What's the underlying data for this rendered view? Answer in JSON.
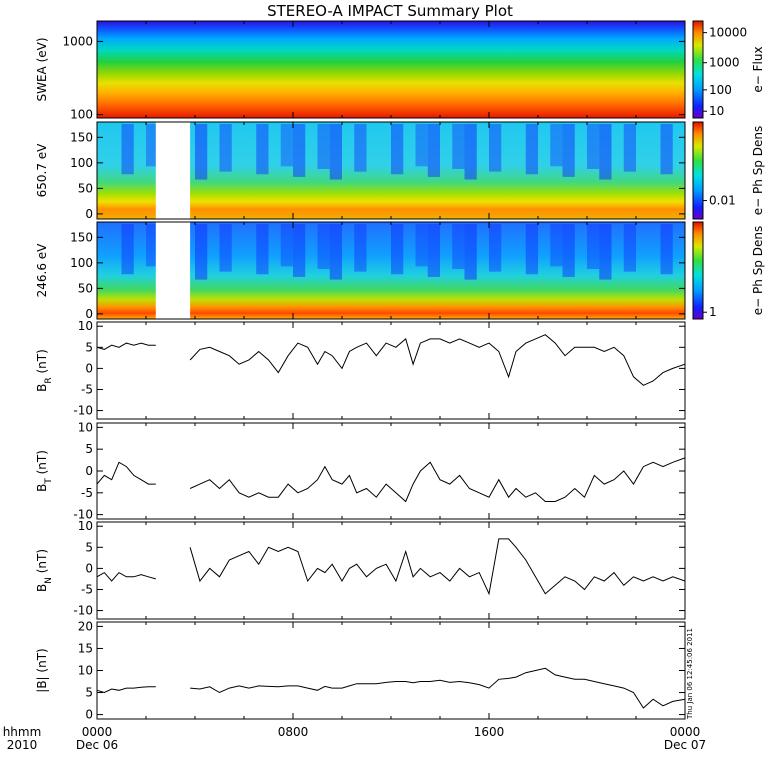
{
  "title": "STEREO-A IMPACT Summary Plot",
  "stamp": "Thu Jan 06 12:45:06 2011",
  "time_axis": {
    "row1_labels": [
      "hhmm",
      "0000",
      "0800",
      "1600",
      "0000"
    ],
    "row2_labels": [
      "2010",
      "Dec 06",
      "",
      "",
      "Dec 07"
    ]
  },
  "colors": {
    "trace": "#000000",
    "frame": "#000000"
  },
  "chart_data": [
    {
      "type": "heatmap",
      "ylabel": "SWEA (eV)",
      "ylog": true,
      "ylim": [
        90,
        1900
      ],
      "yticks": [
        "1000",
        "100"
      ],
      "colorbar": {
        "label": "e− Flux",
        "ticks": [
          "10000",
          "1000",
          "100",
          "10"
        ]
      },
      "x_hours": [
        0,
        24
      ],
      "data_gaps_hours": []
    },
    {
      "type": "heatmap",
      "ylabel": "650.7 eV",
      "ylim": [
        -10,
        180
      ],
      "yticks": [
        "150",
        "100",
        "50",
        "0"
      ],
      "colorbar": {
        "label": "e− Ph Sp Dens",
        "ticks": [
          "0.01"
        ]
      },
      "x_hours": [
        0,
        24
      ],
      "data_gaps_hours": [
        [
          2.4,
          3.8
        ]
      ]
    },
    {
      "type": "heatmap",
      "ylabel": "246.6 eV",
      "ylim": [
        -10,
        180
      ],
      "yticks": [
        "150",
        "100",
        "50",
        "0"
      ],
      "colorbar": {
        "label": "e− Ph Sp Dens",
        "ticks": [
          "1"
        ]
      },
      "x_hours": [
        0,
        24
      ],
      "data_gaps_hours": [
        [
          2.4,
          3.8
        ]
      ]
    },
    {
      "type": "line",
      "ylabel_main": "B",
      "ylabel_sub": "R",
      "ylabel_unit": " (nT)",
      "ylim": [
        -12,
        11
      ],
      "yticks": [
        "10",
        "5",
        "0",
        "-5",
        "-10"
      ],
      "series": [
        {
          "x": [
            0,
            0.3,
            0.6,
            0.9,
            1.2,
            1.5,
            1.8,
            2.1,
            2.4,
            3.8,
            4.2,
            4.6,
            5.0,
            5.4,
            5.8,
            6.2,
            6.6,
            7.0,
            7.4,
            7.8,
            8.2,
            8.6,
            9.0,
            9.3,
            9.6,
            10.0,
            10.3,
            10.6,
            11.0,
            11.4,
            11.8,
            12.2,
            12.6,
            12.9,
            13.2,
            13.6,
            14.0,
            14.4,
            14.8,
            15.2,
            15.6,
            16.0,
            16.4,
            16.8,
            17.1,
            17.5,
            17.9,
            18.3,
            18.7,
            19.1,
            19.5,
            19.9,
            20.3,
            20.7,
            21.1,
            21.5,
            21.9,
            22.3,
            22.7,
            23.1,
            23.5,
            24.0
          ],
          "y": [
            5,
            4.5,
            5.5,
            5,
            6,
            5.5,
            6,
            5.5,
            5.5,
            2,
            4.5,
            5,
            4,
            3,
            1,
            2,
            4,
            2,
            -1,
            3,
            6,
            5,
            1,
            4,
            3,
            0,
            4,
            5,
            6,
            3,
            6,
            5,
            7,
            1,
            6,
            7,
            7,
            6,
            7,
            6,
            5,
            6,
            4,
            -2,
            4,
            6,
            7,
            8,
            6,
            3,
            5,
            5,
            5,
            4,
            5,
            3,
            -2,
            -4,
            -3,
            -1,
            0,
            1
          ]
        }
      ]
    },
    {
      "type": "line",
      "ylabel_main": "B",
      "ylabel_sub": "T",
      "ylabel_unit": " (nT)",
      "ylim": [
        -11,
        11
      ],
      "yticks": [
        "10",
        "5",
        "0",
        "-5",
        "-10"
      ],
      "series": [
        {
          "x": [
            0,
            0.3,
            0.6,
            0.9,
            1.2,
            1.5,
            1.8,
            2.1,
            2.4,
            3.8,
            4.2,
            4.6,
            5.0,
            5.4,
            5.8,
            6.2,
            6.6,
            7.0,
            7.4,
            7.8,
            8.2,
            8.6,
            9.0,
            9.3,
            9.6,
            10.0,
            10.3,
            10.6,
            11.0,
            11.4,
            11.8,
            12.2,
            12.6,
            12.9,
            13.2,
            13.6,
            14.0,
            14.4,
            14.8,
            15.2,
            15.6,
            16.0,
            16.4,
            16.8,
            17.1,
            17.5,
            17.9,
            18.3,
            18.7,
            19.1,
            19.5,
            19.9,
            20.3,
            20.7,
            21.1,
            21.5,
            21.9,
            22.3,
            22.7,
            23.1,
            23.5,
            24.0
          ],
          "y": [
            -3,
            -1,
            -2,
            2,
            1,
            -1,
            -2,
            -3,
            -3,
            -4,
            -3,
            -2,
            -4,
            -2,
            -5,
            -6,
            -5,
            -6,
            -6,
            -3,
            -5,
            -4,
            -2,
            1,
            -2,
            -3,
            -1,
            -5,
            -4,
            -6,
            -3,
            -5,
            -7,
            -3,
            0,
            2,
            -2,
            -3,
            -1,
            -4,
            -5,
            -6,
            -2,
            -6,
            -4,
            -6,
            -5,
            -7,
            -7,
            -6,
            -4,
            -6,
            -1,
            -3,
            -2,
            0,
            -3,
            1,
            2,
            1,
            2,
            3
          ]
        }
      ]
    },
    {
      "type": "line",
      "ylabel_main": "B",
      "ylabel_sub": "N",
      "ylabel_unit": " (nT)",
      "ylim": [
        -12,
        11
      ],
      "yticks": [
        "10",
        "5",
        "0",
        "-5",
        "-10"
      ],
      "series": [
        {
          "x": [
            0,
            0.3,
            0.6,
            0.9,
            1.2,
            1.5,
            1.8,
            2.1,
            2.4,
            3.8,
            4.2,
            4.6,
            5.0,
            5.4,
            5.8,
            6.2,
            6.6,
            7.0,
            7.4,
            7.8,
            8.2,
            8.6,
            9.0,
            9.3,
            9.6,
            10.0,
            10.3,
            10.6,
            11.0,
            11.4,
            11.8,
            12.2,
            12.6,
            12.9,
            13.2,
            13.6,
            14.0,
            14.4,
            14.8,
            15.2,
            15.6,
            16.0,
            16.4,
            16.8,
            17.1,
            17.5,
            17.9,
            18.3,
            18.7,
            19.1,
            19.5,
            19.9,
            20.3,
            20.7,
            21.1,
            21.5,
            21.9,
            22.3,
            22.7,
            23.1,
            23.5,
            24.0
          ],
          "y": [
            -2,
            -1,
            -3,
            -1,
            -2,
            -2,
            -1.5,
            -2,
            -2.5,
            5,
            -3,
            0,
            -2,
            2,
            3,
            4,
            1,
            5,
            4,
            5,
            4,
            -3,
            0,
            -1,
            1,
            -3,
            0,
            1,
            -2,
            0,
            1,
            -3,
            4,
            -2,
            0,
            -2,
            -1,
            -3,
            0,
            -2,
            -1,
            -6,
            7,
            7,
            5,
            2,
            -2,
            -6,
            -4,
            -2,
            -3,
            -5,
            -2,
            -3,
            -1,
            -4,
            -2,
            -3,
            -2,
            -3,
            -2,
            -3
          ]
        }
      ]
    },
    {
      "type": "line",
      "ylabel_main": "|B| (nT)",
      "ylabel_sub": "",
      "ylabel_unit": "",
      "ylim": [
        -1,
        21
      ],
      "yticks": [
        "20",
        "15",
        "10",
        "5",
        "0"
      ],
      "series": [
        {
          "x": [
            0,
            0.3,
            0.6,
            0.9,
            1.2,
            1.5,
            1.8,
            2.1,
            2.4,
            3.8,
            4.2,
            4.6,
            5.0,
            5.4,
            5.8,
            6.2,
            6.6,
            7.0,
            7.4,
            7.8,
            8.2,
            8.6,
            9.0,
            9.3,
            9.6,
            10.0,
            10.3,
            10.6,
            11.0,
            11.4,
            11.8,
            12.2,
            12.6,
            12.9,
            13.2,
            13.6,
            14.0,
            14.4,
            14.8,
            15.2,
            15.6,
            16.0,
            16.4,
            16.8,
            17.1,
            17.5,
            17.9,
            18.3,
            18.7,
            19.1,
            19.5,
            19.9,
            20.3,
            20.7,
            21.1,
            21.5,
            21.9,
            22.3,
            22.7,
            23.1,
            23.5,
            24.0
          ],
          "y": [
            5.5,
            5,
            5.8,
            5.5,
            6,
            6,
            6.2,
            6.3,
            6.3,
            6,
            5.8,
            6.3,
            5,
            6,
            6.5,
            6,
            6.5,
            6.4,
            6.3,
            6.5,
            6.5,
            6,
            5.5,
            6.4,
            6,
            6,
            6.5,
            7,
            7,
            7,
            7.3,
            7.5,
            7.5,
            7.2,
            7.5,
            7.5,
            7.8,
            7.3,
            7.5,
            7.2,
            6.8,
            6,
            8,
            8.2,
            8.5,
            9.5,
            10,
            10.5,
            9,
            8.5,
            8,
            8,
            7.5,
            7,
            6.5,
            6,
            5,
            1.5,
            3.5,
            2,
            3,
            3.5
          ]
        }
      ]
    }
  ]
}
